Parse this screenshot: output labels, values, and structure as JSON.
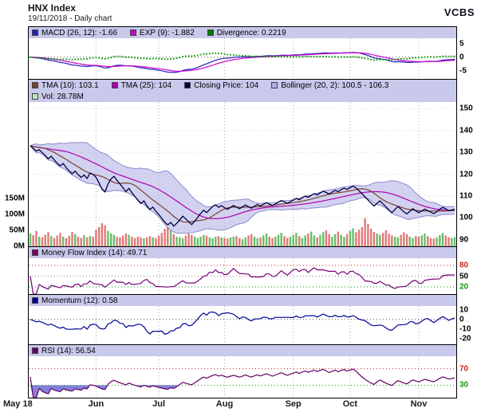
{
  "header": {
    "title": "HNX Index",
    "subtitle": "19/11/2018 - Daily chart",
    "brand": "VCBS"
  },
  "colors": {
    "legend_bg": "#c9c9ec",
    "macd_line": "#2222bb",
    "macd_signal": "#cc00cc",
    "macd_divergence": "#009900",
    "close": "#000040",
    "tma10": "#7a4030",
    "tma25": "#b000b0",
    "bollinger_fill": "#b4b4e6",
    "bollinger_edge": "#8a8ad0",
    "volume_up": "#58b858",
    "volume_down": "#e06a6a",
    "mfi_line": "#770077",
    "momentum_line": "#000099",
    "rsi_line": "#660066",
    "rsi_fill_high": "#e03030",
    "rsi_fill_low": "#6b6bd0",
    "overbought": "#cc2222",
    "oversold": "#119911",
    "grid": "#aaaaaa"
  },
  "panels": {
    "macd": {
      "legend": [
        {
          "label": "MACD (26, 12): -1.66",
          "color": "#2222bb"
        },
        {
          "label": "EXP (9): -1.882",
          "color": "#cc00cc"
        },
        {
          "label": "Divergence: 0.2219",
          "color": "#007700"
        }
      ],
      "ylim": [
        -8,
        7
      ],
      "yticks": [
        {
          "v": 5,
          "label": "5"
        },
        {
          "v": 0,
          "label": "0"
        },
        {
          "v": -5,
          "label": "-5"
        }
      ]
    },
    "main": {
      "legend": [
        {
          "label": "TMA (10): 103.1",
          "color": "#7a4030"
        },
        {
          "label": "TMA (25): 104",
          "color": "#b000b0"
        },
        {
          "label": "Closing Price: 104",
          "color": "#000040"
        },
        {
          "label": "Bollinger (20, 2): 100.5 - 106.3",
          "color": "#aab0ea"
        }
      ],
      "legend_row2": [
        {
          "label": "Vol: 28.78M",
          "color": "#b8e8b8"
        }
      ],
      "ylim": [
        87,
        153
      ],
      "yticks": [
        {
          "v": 150,
          "label": "150"
        },
        {
          "v": 140,
          "label": "140"
        },
        {
          "v": 130,
          "label": "130"
        },
        {
          "v": 120,
          "label": "120"
        },
        {
          "v": 110,
          "label": "110"
        },
        {
          "v": 100,
          "label": "100"
        },
        {
          "v": 90,
          "label": "90"
        }
      ],
      "volume_ticks": [
        {
          "v": 150,
          "label": "150M"
        },
        {
          "v": 100,
          "label": "100M"
        },
        {
          "v": 50,
          "label": "50M"
        },
        {
          "v": 0,
          "label": "0M"
        }
      ],
      "volume_max": 150
    },
    "mfi": {
      "legend": [
        {
          "label": "Money Flow Index (14): 49.71",
          "color": "#770077"
        }
      ],
      "ylim": [
        0,
        100
      ],
      "yticks": [
        {
          "v": 80,
          "label": "80",
          "color": "#cc2222"
        },
        {
          "v": 50,
          "label": "50"
        },
        {
          "v": 20,
          "label": "20",
          "color": "#119911"
        }
      ]
    },
    "momentum": {
      "legend": [
        {
          "label": "Momentum (12): 0.58",
          "color": "#000099"
        }
      ],
      "ylim": [
        -26,
        14
      ],
      "yticks": [
        {
          "v": 10,
          "label": "10"
        },
        {
          "v": 0,
          "label": "0"
        },
        {
          "v": -10,
          "label": "-10"
        },
        {
          "v": -20,
          "label": "-20"
        }
      ]
    },
    "rsi": {
      "legend": [
        {
          "label": "RSI (14): 56.54",
          "color": "#660066"
        }
      ],
      "ylim": [
        0,
        100
      ],
      "yticks": [
        {
          "v": 70,
          "label": "70",
          "color": "#cc2222"
        },
        {
          "v": 30,
          "label": "30",
          "color": "#119911"
        }
      ]
    }
  },
  "chart_data": {
    "type": "line",
    "title": "HNX Index",
    "date": "19/11/2018",
    "interval": "Daily chart",
    "months": [
      {
        "label": "May 18",
        "index": 0
      },
      {
        "label": "Jun",
        "index": 22
      },
      {
        "label": "Jul",
        "index": 43
      },
      {
        "label": "Aug",
        "index": 65
      },
      {
        "label": "Sep",
        "index": 88
      },
      {
        "label": "Oct",
        "index": 107
      },
      {
        "label": "Nov",
        "index": 130
      }
    ],
    "close": [
      133.0,
      131.8,
      130.5,
      131.2,
      129.8,
      128.5,
      127.0,
      128.2,
      126.5,
      125.0,
      123.8,
      124.9,
      123.0,
      121.5,
      120.2,
      121.4,
      119.8,
      118.5,
      119.6,
      118.0,
      120.5,
      119.9,
      118.5,
      116.0,
      113.0,
      111.8,
      115.5,
      117.8,
      119.0,
      117.2,
      115.5,
      113.8,
      112.0,
      113.5,
      111.5,
      109.8,
      108.0,
      106.5,
      107.8,
      105.5,
      103.8,
      104.9,
      103.0,
      101.5,
      99.8,
      98.0,
      96.8,
      97.9,
      96.2,
      97.5,
      99.0,
      100.8,
      99.5,
      98.2,
      96.9,
      98.5,
      100.2,
      102.0,
      103.5,
      102.4,
      103.8,
      105.2,
      106.0,
      104.8,
      105.6,
      104.6,
      103.9,
      104.8,
      105.6,
      104.9,
      104.2,
      105.0,
      105.9,
      105.1,
      104.4,
      105.3,
      106.1,
      105.4,
      106.2,
      107.0,
      106.3,
      105.6,
      106.4,
      107.2,
      108.0,
      107.3,
      106.6,
      107.4,
      108.1,
      108.9,
      108.3,
      109.2,
      110.0,
      109.4,
      110.3,
      111.1,
      110.5,
      111.4,
      112.2,
      111.6,
      110.9,
      111.8,
      112.6,
      112.0,
      112.9,
      113.6,
      113.0,
      113.8,
      114.5,
      113.7,
      112.4,
      111.0,
      109.6,
      108.2,
      106.8,
      105.4,
      106.6,
      107.8,
      106.4,
      105.0,
      103.6,
      102.4,
      103.8,
      105.2,
      104.0,
      102.8,
      101.8,
      103.0,
      104.2,
      103.2,
      102.4,
      103.2,
      104.0,
      103.3,
      102.6,
      101.9,
      102.8,
      103.9,
      104.8,
      104.1,
      103.3,
      103.6,
      104.0
    ],
    "volume_M": [
      40,
      35,
      48,
      30,
      28,
      36,
      44,
      32,
      26,
      34,
      42,
      30,
      25,
      33,
      45,
      38,
      30,
      26,
      35,
      28,
      32,
      30,
      52,
      60,
      72,
      65,
      48,
      40,
      36,
      30,
      28,
      34,
      40,
      36,
      30,
      26,
      30,
      28,
      25,
      28,
      32,
      28,
      26,
      34,
      42,
      55,
      60,
      50,
      38,
      30,
      28,
      25,
      33,
      40,
      36,
      30,
      26,
      30,
      35,
      33,
      28,
      25,
      30,
      32,
      28,
      26,
      24,
      28,
      30,
      32,
      26,
      22,
      28,
      34,
      38,
      30,
      25,
      28,
      34,
      40,
      30,
      26,
      30,
      36,
      42,
      32,
      26,
      30,
      36,
      42,
      32,
      26,
      34,
      40,
      46,
      34,
      28,
      36,
      44,
      50,
      38,
      30,
      38,
      46,
      36,
      30,
      38,
      48,
      56,
      44,
      52,
      60,
      88,
      70,
      55,
      45,
      40,
      36,
      42,
      50,
      40,
      34,
      30,
      28,
      36,
      44,
      38,
      30,
      26,
      32,
      30,
      34,
      40,
      32,
      26,
      24,
      28,
      35,
      42,
      34,
      28,
      26,
      28.78
    ],
    "indicators": {
      "macd": {
        "params": [
          26,
          12
        ],
        "last": -1.66,
        "exp_params": 9,
        "exp_last": -1.882,
        "divergence_last": 0.2219
      },
      "tma10_last": 103.1,
      "tma25_last": 104,
      "close_last": 104,
      "bollinger": {
        "params": [
          20,
          2
        ],
        "lower_last": 100.5,
        "upper_last": 106.3
      },
      "volume_last": "28.78M",
      "mfi": {
        "params": 14,
        "last": 49.71
      },
      "momentum": {
        "params": 12,
        "last": 0.58
      },
      "rsi": {
        "params": 14,
        "last": 56.54
      }
    }
  }
}
